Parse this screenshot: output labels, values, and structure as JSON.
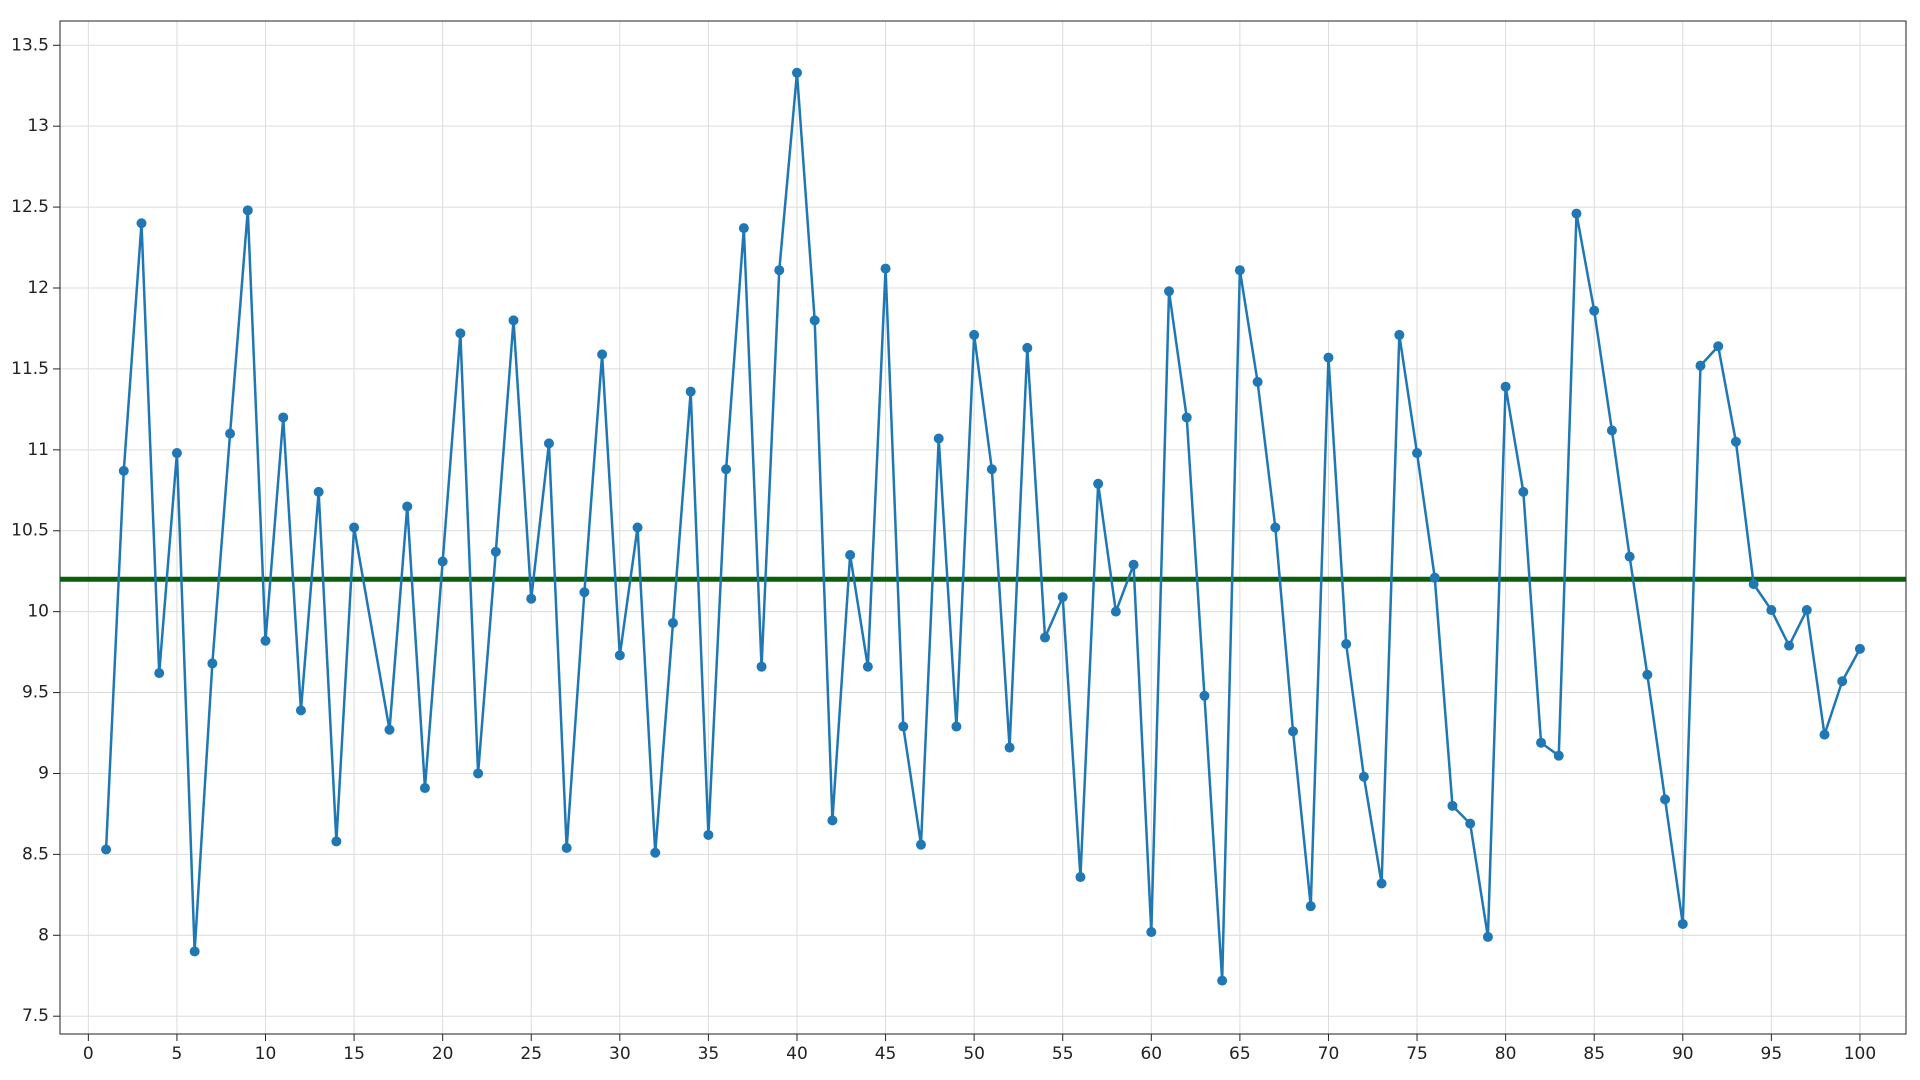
{
  "chart_data": {
    "type": "line",
    "x": [
      1,
      2,
      3,
      4,
      5,
      6,
      7,
      8,
      9,
      10,
      11,
      12,
      13,
      14,
      15,
      17,
      18,
      19,
      20,
      21,
      22,
      23,
      24,
      25,
      26,
      27,
      28,
      29,
      30,
      31,
      32,
      33,
      34,
      35,
      36,
      37,
      38,
      39,
      40,
      41,
      42,
      43,
      44,
      45,
      46,
      47,
      48,
      49,
      50,
      51,
      52,
      53,
      54,
      55,
      56,
      57,
      58,
      59,
      60,
      61,
      62,
      63,
      64,
      65,
      66,
      67,
      68,
      69,
      70,
      71,
      72,
      73,
      74,
      75,
      76,
      77,
      78,
      79,
      80,
      81,
      82,
      83,
      84,
      85,
      86,
      87,
      88,
      89,
      90,
      91,
      92,
      93,
      94,
      95,
      96,
      97,
      98,
      99,
      100
    ],
    "series": [
      {
        "color": "#1f77b4",
        "values": [
          8.53,
          10.87,
          12.4,
          9.62,
          10.98,
          7.9,
          9.68,
          11.1,
          12.48,
          9.82,
          11.2,
          9.39,
          10.74,
          8.58,
          10.52,
          9.27,
          10.65,
          8.91,
          10.31,
          11.72,
          9.0,
          10.37,
          11.8,
          10.08,
          11.04,
          8.54,
          10.12,
          11.59,
          9.73,
          10.52,
          8.51,
          9.93,
          11.36,
          8.62,
          10.88,
          12.37,
          9.66,
          12.11,
          13.33,
          11.8,
          8.71,
          10.35,
          9.66,
          12.12,
          9.29,
          8.56,
          11.07,
          9.29,
          11.71,
          10.88,
          9.16,
          11.63,
          9.84,
          10.09,
          8.36,
          10.79,
          10.0,
          10.29,
          8.02,
          11.98,
          11.2,
          9.48,
          7.72,
          12.11,
          11.42,
          10.52,
          9.26,
          8.18,
          11.57,
          9.8,
          8.98,
          8.32,
          11.71,
          10.98,
          10.21,
          8.8,
          8.69,
          7.99,
          11.39,
          10.74,
          9.19,
          9.11,
          12.46,
          11.86,
          11.12,
          10.34,
          9.61,
          8.84,
          8.07,
          11.52,
          11.64,
          11.05,
          10.17,
          10.01,
          9.79,
          10.01,
          9.24,
          9.57,
          9.77
        ]
      }
    ],
    "reference_line": {
      "value": 10.2,
      "color": "#0b5e0b"
    },
    "xlim": [
      -1.6,
      102.6
    ],
    "xticks": [
      0,
      5,
      10,
      15,
      20,
      25,
      30,
      35,
      40,
      45,
      50,
      55,
      60,
      65,
      70,
      75,
      80,
      85,
      90,
      95,
      100
    ],
    "ylim": [
      7.39,
      13.65
    ],
    "yticks": [
      7.5,
      8,
      8.5,
      9,
      9.5,
      10,
      10.5,
      11,
      11.5,
      12,
      12.5,
      13,
      13.5
    ],
    "grid": true
  }
}
